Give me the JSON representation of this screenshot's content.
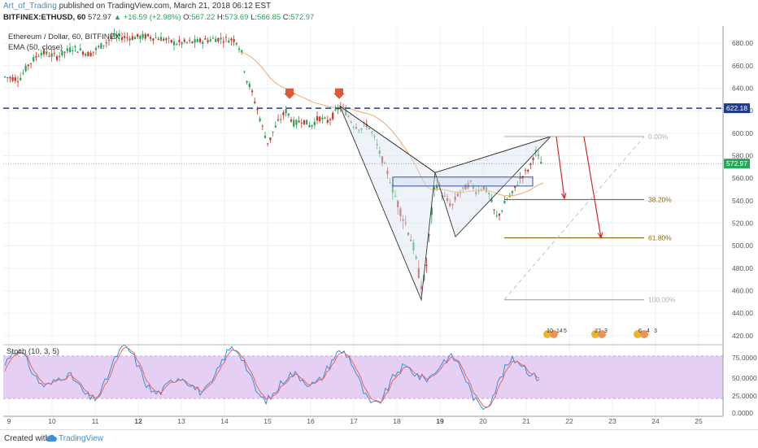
{
  "header": {
    "author": "Art_of_Trading",
    "published": "published on TradingView.com, March 21, 2018 06:12 EST",
    "symbol": "BITFINEX:ETHUSD, 60",
    "last": "572.97",
    "change": "▲ +16.59 (+2.98%)",
    "o_label": "O:",
    "o_val": "567.22",
    "h_label": "H:",
    "h_val": "573.69",
    "l_label": "L:",
    "l_val": "566.85",
    "c_label": "C:",
    "c_val": "572.97"
  },
  "legend": {
    "title": "Ethereum / Dollar, 60, BITFINEX",
    "ema": "EMA (50, close)"
  },
  "stoch": {
    "label": "Stoch (10, 3, 5)"
  },
  "footer": {
    "created": "Created with",
    "brand": "TradingView"
  },
  "colors": {
    "up": "#26a65b",
    "down": "#c0392b",
    "ema": "#f0a86a",
    "resistance": "#1f3b8c",
    "fib": "#8b6914",
    "fib_gray": "#b0b0b0",
    "arrow": "#d62728",
    "stoch_k": "#3a8fd8",
    "stoch_d": "#e8665c",
    "stoch_band": "#dcc0f0"
  },
  "chart_data": {
    "type": "candlestick",
    "y_ticks": [
      680,
      660,
      640,
      620,
      600,
      580,
      560,
      540,
      520,
      500,
      480,
      460,
      440,
      420
    ],
    "ylim": [
      412,
      688
    ],
    "x_ticks": [
      "9",
      "10",
      "11",
      "12",
      "13",
      "14",
      "15",
      "16",
      "17",
      "18",
      "19",
      "20",
      "21",
      "22",
      "23",
      "24",
      "25"
    ],
    "resistance": {
      "value": 622.18,
      "label": "622.18"
    },
    "last_price": {
      "value": 572.97,
      "label": "572.97"
    },
    "fib_levels": [
      {
        "label": "0.00%",
        "value": 597
      },
      {
        "label": "38.20%",
        "value": 541
      },
      {
        "label": "61.80%",
        "value": 507
      },
      {
        "label": "100.00%",
        "value": 452
      }
    ],
    "stoch_ticks": [
      "75.0000",
      "50.0000",
      "25.0000",
      "0.0000"
    ],
    "stoch_band": [
      20,
      80
    ],
    "events": [
      {
        "label": "10",
        "count": "14",
        "extra": "5"
      },
      {
        "label": "27",
        "count": "3"
      },
      {
        "label": "6",
        "count": "4",
        "extra": "3"
      }
    ]
  }
}
